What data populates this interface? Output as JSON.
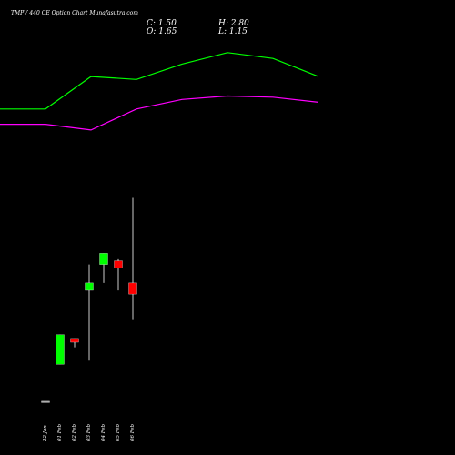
{
  "chart_data": {
    "type": "candlestick",
    "title": "TMPV 440 CE Option Chart Munafasutra.com",
    "ohlc": {
      "close_label": "C: 1.50",
      "high_label": "H: 2.80",
      "open_label": "O: 1.65",
      "low_label": "L: 1.15"
    },
    "dates": [
      "22 Jan",
      "01 Feb",
      "02 Feb",
      "03 Feb",
      "04 Feb",
      "05 Feb",
      "06 Feb"
    ],
    "candles": [
      {
        "date": "22 Jan",
        "open": 0.05,
        "high": 0.05,
        "low": 0.05,
        "close": 0.05
      },
      {
        "date": "01 Feb",
        "open": 0.55,
        "high": 0.95,
        "low": 0.55,
        "close": 0.95
      },
      {
        "date": "02 Feb",
        "open": 0.9,
        "high": 0.9,
        "low": 0.78,
        "close": 0.85
      },
      {
        "date": "03 Feb",
        "open": 1.55,
        "high": 1.9,
        "low": 0.6,
        "close": 1.65
      },
      {
        "date": "04 Feb",
        "open": 1.9,
        "high": 2.05,
        "low": 1.65,
        "close": 2.05
      },
      {
        "date": "05 Feb",
        "open": 1.95,
        "high": 1.97,
        "low": 1.55,
        "close": 1.85
      },
      {
        "date": "06 Feb",
        "open": 1.65,
        "high": 2.8,
        "low": 1.15,
        "close": 1.5
      }
    ],
    "price_range": [
      0,
      2.4
    ],
    "line_series": [
      {
        "color": "#00ff00",
        "values": [
          6.2,
          6.2,
          7.9,
          7.75,
          8.55,
          9.15,
          8.85,
          7.9
        ]
      },
      {
        "color": "#ff00ff",
        "values": [
          5.4,
          5.4,
          5.1,
          6.2,
          6.7,
          6.88,
          6.82,
          6.55
        ]
      }
    ],
    "line_x_positions": [
      0,
      50,
      100,
      150,
      200,
      250,
      300,
      350
    ],
    "line_range": [
      0,
      10
    ],
    "colors": {
      "background": "#000000",
      "bullish": "#00ff00",
      "bearish": "#ff0000",
      "wick": "#ffffff",
      "text": "#ffffff"
    },
    "grid": false
  }
}
